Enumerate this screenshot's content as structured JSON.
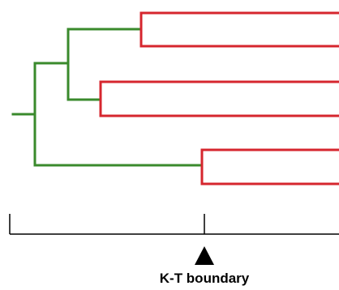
{
  "diagram": {
    "type": "phylogenetic-tree-timeline",
    "colors": {
      "ancestral_branch": "#3a8a2c",
      "descendant_branch": "#d6262e",
      "timeline": "#000000"
    },
    "marker": {
      "label": "K-T boundary",
      "icon": "triangle-up"
    }
  }
}
